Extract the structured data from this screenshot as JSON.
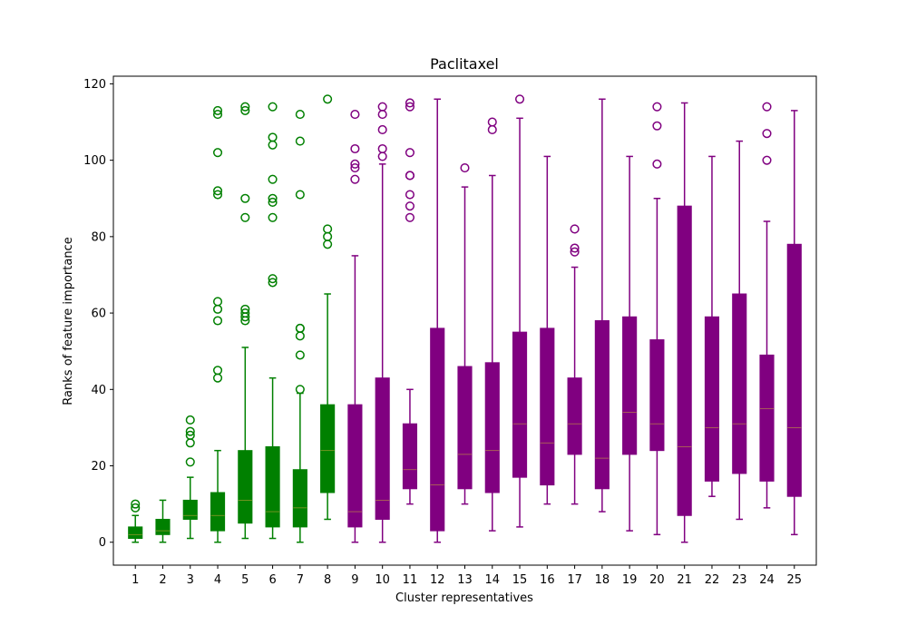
{
  "chart_data": {
    "type": "boxplot",
    "title": "Paclitaxel",
    "xlabel": "Cluster representatives",
    "ylabel": "Ranks of feature importance",
    "ylim": [
      -6,
      122
    ],
    "yticks": [
      0,
      20,
      40,
      60,
      80,
      100,
      120
    ],
    "grid": false,
    "colors": {
      "green": "#008000",
      "purple": "#800080"
    },
    "boxes": [
      {
        "label": "1",
        "color": "green",
        "whislo": 0,
        "q1": 1,
        "med": 2,
        "q3": 4,
        "whishi": 7,
        "fliers": [
          9,
          10
        ]
      },
      {
        "label": "2",
        "color": "green",
        "whislo": 0,
        "q1": 2,
        "med": 3,
        "q3": 6,
        "whishi": 11,
        "fliers": []
      },
      {
        "label": "3",
        "color": "green",
        "whislo": 1,
        "q1": 6,
        "med": 7,
        "q3": 11,
        "whishi": 17,
        "fliers": [
          21,
          26,
          28,
          29,
          32
        ]
      },
      {
        "label": "4",
        "color": "green",
        "whislo": 0,
        "q1": 3,
        "med": 7,
        "q3": 13,
        "whishi": 24,
        "fliers": [
          43,
          45,
          58,
          61,
          63,
          91,
          92,
          102,
          112,
          113
        ]
      },
      {
        "label": "5",
        "color": "green",
        "whislo": 1,
        "q1": 5,
        "med": 11,
        "q3": 24,
        "whishi": 51,
        "fliers": [
          58,
          59,
          60,
          61,
          85,
          90,
          113,
          114
        ]
      },
      {
        "label": "6",
        "color": "green",
        "whislo": 1,
        "q1": 4,
        "med": 8,
        "q3": 25,
        "whishi": 43,
        "fliers": [
          68,
          69,
          85,
          89,
          90,
          95,
          104,
          106,
          114
        ]
      },
      {
        "label": "7",
        "color": "green",
        "whislo": 0,
        "q1": 4,
        "med": 9,
        "q3": 19,
        "whishi": 39,
        "fliers": [
          40,
          49,
          54,
          56,
          56,
          91,
          105,
          112
        ]
      },
      {
        "label": "8",
        "color": "green",
        "whislo": 6,
        "q1": 13,
        "med": 24,
        "q3": 36,
        "whishi": 65,
        "fliers": [
          78,
          80,
          82,
          116
        ]
      },
      {
        "label": "9",
        "color": "purple",
        "whislo": 0,
        "q1": 4,
        "med": 8,
        "q3": 36,
        "whishi": 75,
        "fliers": [
          95,
          98,
          99,
          103,
          112
        ]
      },
      {
        "label": "10",
        "color": "purple",
        "whislo": 0,
        "q1": 6,
        "med": 11,
        "q3": 43,
        "whishi": 99,
        "fliers": [
          101,
          103,
          108,
          112,
          114
        ]
      },
      {
        "label": "11",
        "color": "purple",
        "whislo": 10,
        "q1": 14,
        "med": 19,
        "q3": 31,
        "whishi": 40,
        "fliers": [
          85,
          88,
          91,
          96,
          96,
          102,
          114,
          115
        ]
      },
      {
        "label": "12",
        "color": "purple",
        "whislo": 0,
        "q1": 3,
        "med": 15,
        "q3": 56,
        "whishi": 116,
        "fliers": []
      },
      {
        "label": "13",
        "color": "purple",
        "whislo": 10,
        "q1": 14,
        "med": 23,
        "q3": 46,
        "whishi": 93,
        "fliers": [
          98
        ]
      },
      {
        "label": "14",
        "color": "purple",
        "whislo": 3,
        "q1": 13,
        "med": 24,
        "q3": 47,
        "whishi": 96,
        "fliers": [
          108,
          110
        ]
      },
      {
        "label": "15",
        "color": "purple",
        "whislo": 4,
        "q1": 17,
        "med": 31,
        "q3": 55,
        "whishi": 111,
        "fliers": [
          116
        ]
      },
      {
        "label": "16",
        "color": "purple",
        "whislo": 10,
        "q1": 15,
        "med": 26,
        "q3": 56,
        "whishi": 101,
        "fliers": []
      },
      {
        "label": "17",
        "color": "purple",
        "whislo": 10,
        "q1": 23,
        "med": 31,
        "q3": 43,
        "whishi": 72,
        "fliers": [
          76,
          77,
          82
        ]
      },
      {
        "label": "18",
        "color": "purple",
        "whislo": 8,
        "q1": 14,
        "med": 22,
        "q3": 58,
        "whishi": 116,
        "fliers": []
      },
      {
        "label": "19",
        "color": "purple",
        "whislo": 3,
        "q1": 23,
        "med": 34,
        "q3": 59,
        "whishi": 101,
        "fliers": []
      },
      {
        "label": "20",
        "color": "purple",
        "whislo": 2,
        "q1": 24,
        "med": 31,
        "q3": 53,
        "whishi": 90,
        "fliers": [
          99,
          109,
          114
        ]
      },
      {
        "label": "21",
        "color": "purple",
        "whislo": 0,
        "q1": 7,
        "med": 25,
        "q3": 88,
        "whishi": 115,
        "fliers": []
      },
      {
        "label": "22",
        "color": "purple",
        "whislo": 12,
        "q1": 16,
        "med": 30,
        "q3": 59,
        "whishi": 101,
        "fliers": []
      },
      {
        "label": "23",
        "color": "purple",
        "whislo": 6,
        "q1": 18,
        "med": 31,
        "q3": 65,
        "whishi": 105,
        "fliers": []
      },
      {
        "label": "24",
        "color": "purple",
        "whislo": 9,
        "q1": 16,
        "med": 35,
        "q3": 49,
        "whishi": 84,
        "fliers": [
          100,
          107,
          114
        ]
      },
      {
        "label": "25",
        "color": "purple",
        "whislo": 2,
        "q1": 12,
        "med": 30,
        "q3": 78,
        "whishi": 113,
        "fliers": []
      }
    ]
  }
}
